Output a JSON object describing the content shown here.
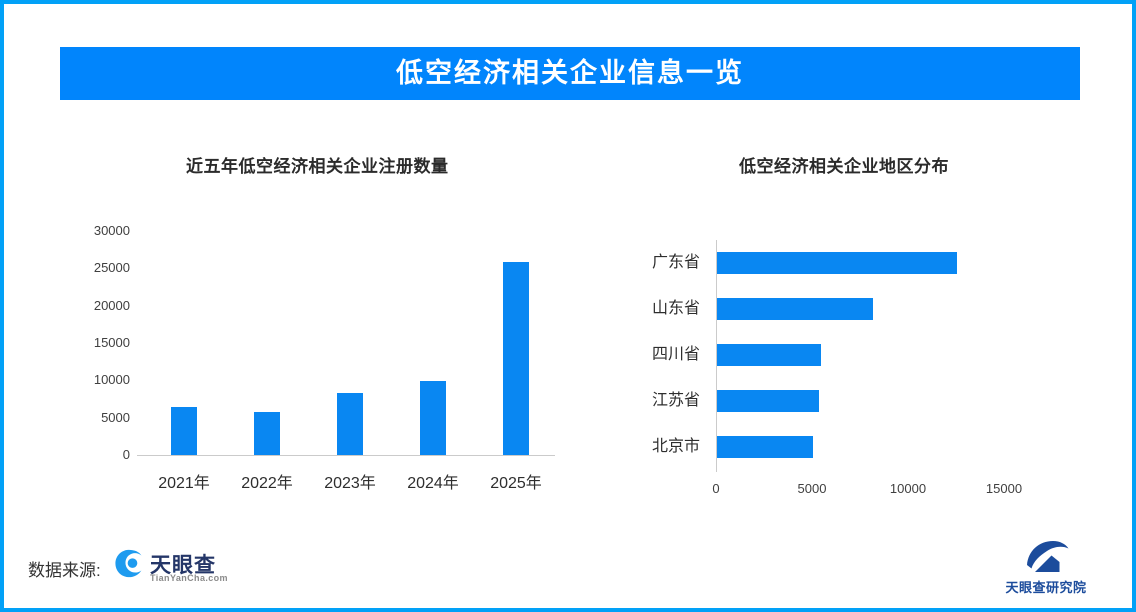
{
  "page": {
    "border_color": "#02A1F7",
    "background": "#FFFFFF"
  },
  "banner": {
    "title": "低空经济相关企业信息一览",
    "bg_color": "#0185FC",
    "text_color": "#FFFFFF"
  },
  "chart_data": [
    {
      "type": "bar",
      "orientation": "vertical",
      "title": "近五年低空经济相关企业注册数量",
      "categories": [
        "2021年",
        "2022年",
        "2023年",
        "2024年",
        "2025年"
      ],
      "values": [
        6400,
        5700,
        8300,
        9900,
        25800
      ],
      "yticks": [
        0,
        5000,
        10000,
        15000,
        20000,
        25000,
        30000
      ],
      "ylim": [
        0,
        30000
      ],
      "xlabel": "",
      "ylabel": "",
      "grid": false,
      "legend": false,
      "bar_color": "#0987F2"
    },
    {
      "type": "bar",
      "orientation": "horizontal",
      "title": "低空经济相关企业地区分布",
      "categories": [
        "广东省",
        "山东省",
        "四川省",
        "江苏省",
        "北京市"
      ],
      "values": [
        12500,
        8100,
        5400,
        5300,
        5000
      ],
      "xticks": [
        0,
        5000,
        10000,
        15000
      ],
      "xlim": [
        0,
        18000
      ],
      "xlabel": "",
      "ylabel": "",
      "grid": false,
      "legend": false,
      "bar_color": "#0987F2"
    }
  ],
  "footer": {
    "source_label": "数据来源:",
    "tianyancha": {
      "name": "天眼查",
      "domain": "TianYanCha.com",
      "icon": "tianyancha-eye-icon",
      "icon_color": "#1E9BEF",
      "name_color": "#243668",
      "domain_color": "#8B8B8B"
    },
    "research_institute": {
      "name": "天眼查研究院",
      "icon": "research-institute-swoosh-house-icon",
      "color": "#1C4C9C"
    }
  }
}
